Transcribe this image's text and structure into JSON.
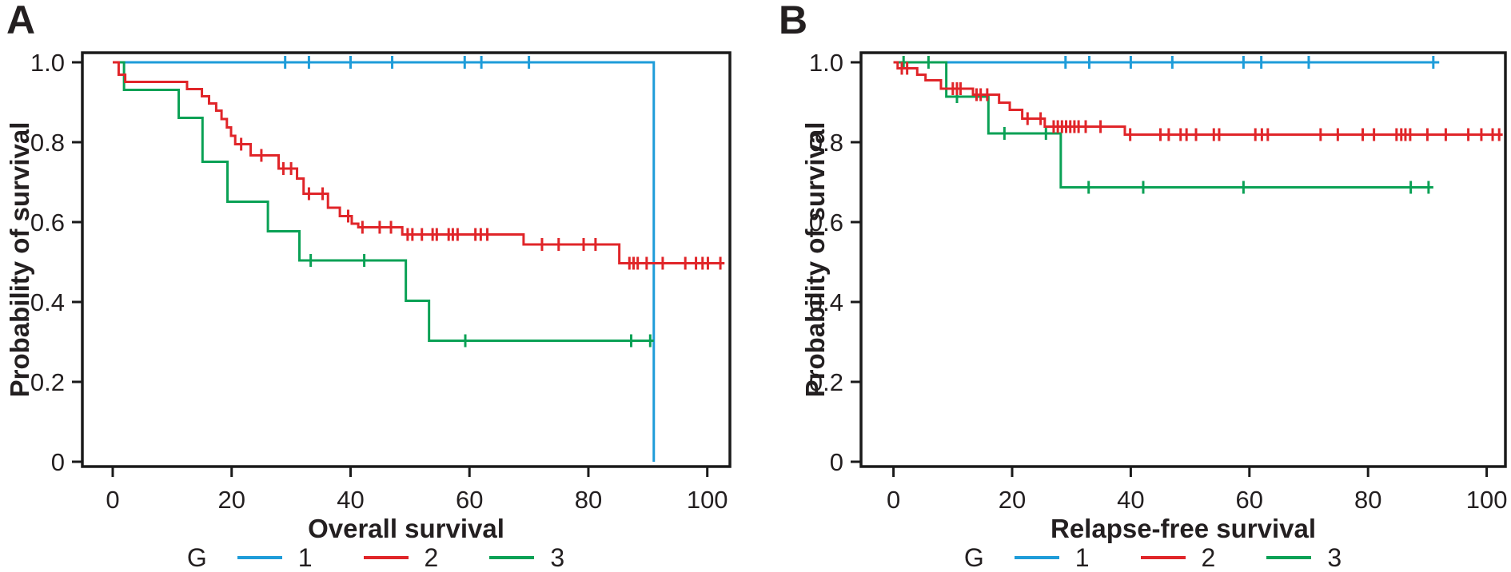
{
  "page": {
    "background": "#FFFFFF",
    "text_color": "#231F20",
    "axis_color": "#1A1A1A"
  },
  "panels": [
    {
      "id": "A",
      "label": "A",
      "xlabel": "Overall survival",
      "ylabel": "Probability of survival",
      "xticks": [
        "0",
        "20",
        "40",
        "60",
        "80",
        "100"
      ],
      "yticks": [
        "1.0",
        "0.8",
        "0.6",
        "0.4",
        "0.2",
        "0"
      ],
      "legend": {
        "group_label": "G",
        "items": [
          {
            "label": "1",
            "color": "#1E9CD9"
          },
          {
            "label": "2",
            "color": "#E02529"
          },
          {
            "label": "3",
            "color": "#0AA155"
          }
        ]
      }
    },
    {
      "id": "B",
      "label": "B",
      "xlabel": "Relapse-free survival",
      "ylabel": "Probability of survival",
      "xticks": [
        "0",
        "20",
        "40",
        "60",
        "80",
        "100"
      ],
      "yticks": [
        "1.0",
        "0.8",
        "0.6",
        "0.4",
        "0.2",
        "0"
      ],
      "legend": {
        "group_label": "G",
        "items": [
          {
            "label": "1",
            "color": "#1E9CD9"
          },
          {
            "label": "2",
            "color": "#E02529"
          },
          {
            "label": "3",
            "color": "#0AA155"
          }
        ]
      }
    }
  ],
  "chart_data": [
    {
      "type": "line",
      "subtype": "kaplan-meier-step",
      "panel": "A",
      "title": "",
      "xlabel": "Overall survival",
      "ylabel": "Probability of survival",
      "xlim": [
        0,
        103
      ],
      "ylim": [
        0,
        1.0
      ],
      "grid": false,
      "legend_position": "bottom",
      "series": [
        {
          "name": "1",
          "color": "#1E9CD9",
          "steps": [
            [
              0,
              1.0
            ],
            [
              91,
              0.0
            ]
          ],
          "end": 91,
          "censor_times": [
            29,
            33,
            40,
            47,
            59.2,
            62,
            70
          ]
        },
        {
          "name": "2",
          "color": "#E02529",
          "steps": [
            [
              0,
              1.0
            ],
            [
              1.0,
              0.969
            ],
            [
              2.1,
              0.951
            ],
            [
              12.5,
              0.933
            ],
            [
              15.0,
              0.915
            ],
            [
              16.2,
              0.897
            ],
            [
              17.4,
              0.879
            ],
            [
              18.3,
              0.858
            ],
            [
              19.2,
              0.837
            ],
            [
              19.9,
              0.816
            ],
            [
              20.6,
              0.795
            ],
            [
              23.2,
              0.767
            ],
            [
              27.9,
              0.734
            ],
            [
              31.0,
              0.709
            ],
            [
              32.1,
              0.671
            ],
            [
              36.2,
              0.636
            ],
            [
              38.2,
              0.615
            ],
            [
              40.2,
              0.596
            ],
            [
              41.3,
              0.587
            ],
            [
              48.7,
              0.569
            ],
            [
              69.1,
              0.544
            ],
            [
              85.2,
              0.497
            ]
          ],
          "end": 102.9,
          "censor_times": [
            21.6,
            25,
            28.7,
            30,
            33,
            35.3,
            39.6,
            42,
            44.9,
            46.8,
            49.6,
            50.4,
            52,
            53.8,
            54.5,
            56.5,
            57.2,
            58,
            61,
            61.9,
            63,
            72.2,
            75,
            79.2,
            81.2,
            86.9,
            87.6,
            88.3,
            89.8,
            92.5,
            96.3,
            98.1,
            99.2,
            100.1,
            102.2
          ]
        },
        {
          "name": "3",
          "color": "#0AA155",
          "steps": [
            [
              0,
              1.0
            ],
            [
              1.9,
              0.931
            ],
            [
              11.1,
              0.861
            ],
            [
              15.1,
              0.751
            ],
            [
              19.3,
              0.651
            ],
            [
              26.1,
              0.577
            ],
            [
              31.4,
              0.504
            ],
            [
              49.3,
              0.403
            ],
            [
              53.2,
              0.303
            ]
          ],
          "end": 91,
          "censor_times": [
            33.3,
            42.3,
            59.3,
            87.2,
            90.4
          ]
        }
      ]
    },
    {
      "type": "line",
      "subtype": "kaplan-meier-step",
      "panel": "B",
      "title": "",
      "xlabel": "Relapse-free survival",
      "ylabel": "Probability of survival",
      "xlim": [
        0,
        103
      ],
      "ylim": [
        0,
        1.0
      ],
      "grid": false,
      "legend_position": "bottom",
      "series": [
        {
          "name": "1",
          "color": "#1E9CD9",
          "steps": [
            [
              0,
              1.0
            ]
          ],
          "end": 92,
          "censor_times": [
            29,
            33,
            40,
            47,
            59,
            62,
            70,
            91
          ]
        },
        {
          "name": "2",
          "color": "#E02529",
          "steps": [
            [
              0,
              1.0
            ],
            [
              0.7,
              0.985
            ],
            [
              4.0,
              0.969
            ],
            [
              5.4,
              0.955
            ],
            [
              8.0,
              0.934
            ],
            [
              13.4,
              0.919
            ],
            [
              17.8,
              0.899
            ],
            [
              19.6,
              0.881
            ],
            [
              21.7,
              0.859
            ],
            [
              25.5,
              0.839
            ],
            [
              39.0,
              0.819
            ]
          ],
          "end": 102.7,
          "censor_times": [
            1.4,
            2.3,
            10,
            10.7,
            11.3,
            14,
            14.7,
            15.8,
            22.6,
            24.8,
            27,
            27.7,
            28.4,
            29.1,
            29.8,
            30.5,
            31.2,
            32.4,
            34.9,
            39.9,
            45,
            46.4,
            48.4,
            49.4,
            51,
            54,
            54.9,
            61,
            62.1,
            63.1,
            72,
            74.9,
            79.1,
            81,
            84.8,
            85.6,
            86.3,
            87.1,
            90,
            93.1,
            96.9,
            99.1,
            101,
            102.1
          ]
        },
        {
          "name": "3",
          "color": "#0AA155",
          "steps": [
            [
              0,
              1.0
            ],
            [
              8.9,
              0.914
            ],
            [
              16.0,
              0.822
            ],
            [
              28.2,
              0.687
            ]
          ],
          "end": 91,
          "censor_times": [
            1.7,
            5.9,
            10.7,
            18.7,
            25.7,
            32.9,
            42.1,
            59,
            87.2,
            90.2
          ]
        }
      ]
    }
  ]
}
